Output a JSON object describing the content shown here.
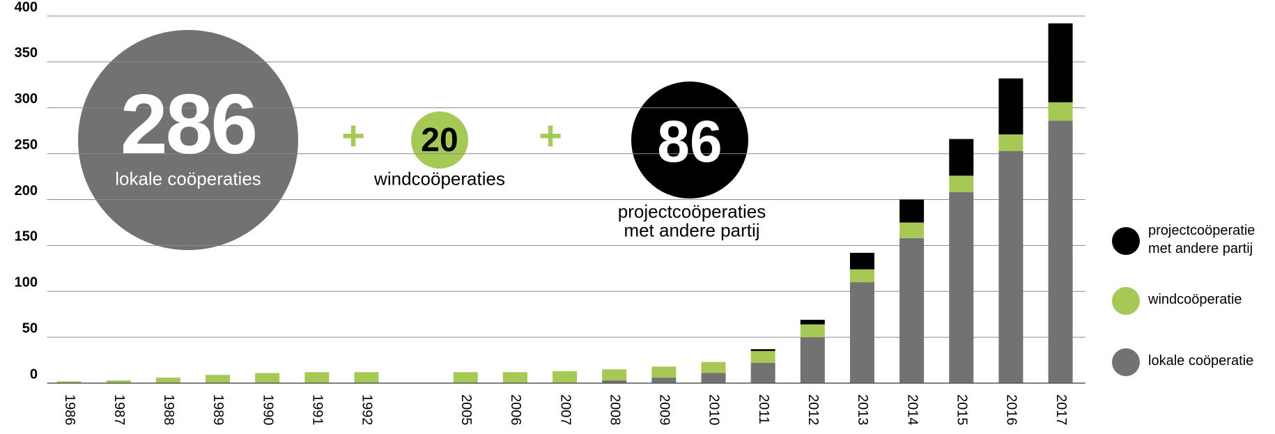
{
  "chart_data": {
    "type": "stacked_bar",
    "categories": [
      "1986",
      "1987",
      "1988",
      "1989",
      "1990",
      "1991",
      "1992",
      null,
      "2005",
      "2006",
      "2007",
      "2008",
      "2009",
      "2010",
      "2011",
      "2012",
      "2013",
      "2014",
      "2015",
      "2016",
      "2017"
    ],
    "series": [
      {
        "name": "lokale coöperatie",
        "color": "#727272",
        "values": [
          0,
          0,
          0,
          0,
          0,
          0,
          0,
          null,
          0,
          0,
          0,
          3,
          6,
          11,
          22,
          50,
          110,
          158,
          208,
          253,
          286
        ]
      },
      {
        "name": "windcoöperatie",
        "color": "#a6c956",
        "values": [
          2,
          3,
          6,
          9,
          11,
          12,
          12,
          null,
          12,
          12,
          13,
          12,
          12,
          12,
          13,
          14,
          14,
          17,
          18,
          18,
          20
        ]
      },
      {
        "name": "projectcoöperatie met andere partij",
        "color": "#000000",
        "values": [
          0,
          0,
          0,
          0,
          0,
          0,
          0,
          null,
          0,
          0,
          0,
          0,
          0,
          0,
          2,
          5,
          18,
          25,
          40,
          61,
          86
        ]
      }
    ],
    "ylim": [
      0,
      400
    ],
    "yticks": [
      0,
      50,
      100,
      150,
      200,
      250,
      300,
      350,
      400
    ],
    "grid": true,
    "legend": "right",
    "annotations": {
      "lokale_number": "286",
      "lokale_label": "lokale coöperaties",
      "plus_1": "+",
      "wind_number": "20",
      "wind_label": "windcoöperaties",
      "plus_2": "+",
      "project_number": "86",
      "project_label": "projectcoöperaties met andere partij"
    }
  }
}
